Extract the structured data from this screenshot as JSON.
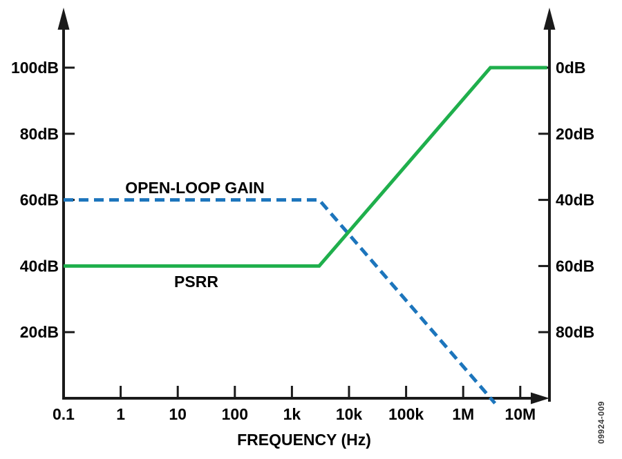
{
  "chart_data": {
    "type": "line",
    "title": "",
    "x_axis": {
      "label": "FREQUENCY (Hz)",
      "scale": "log",
      "tick_labels": [
        "0.1",
        "1",
        "10",
        "100",
        "1k",
        "10k",
        "100k",
        "1M",
        "10M"
      ],
      "tick_values": [
        0.1,
        1,
        10,
        100,
        1000,
        10000,
        100000,
        1000000,
        10000000
      ],
      "range_hz": [
        0.1,
        30000000
      ]
    },
    "y_axis_left": {
      "unit": "dB",
      "tick_labels": [
        "100dB",
        "80dB",
        "60dB",
        "40dB",
        "20dB"
      ],
      "tick_values": [
        100,
        80,
        60,
        40,
        20
      ],
      "range_db": [
        0,
        118
      ]
    },
    "y_axis_right": {
      "unit": "dB",
      "tick_labels": [
        "0dB",
        "20dB",
        "40dB",
        "60dB",
        "80dB"
      ],
      "tick_values_on_left_scale": [
        100,
        80,
        60,
        40,
        20
      ]
    },
    "grid": "off",
    "legend_position": "inline-annotations",
    "series": [
      {
        "name": "OPEN-LOOP GAIN",
        "color": "#1C75BC",
        "line_style": "dashed",
        "slope_after_break": "-20dB/decade",
        "points_hz_db": [
          [
            0.1,
            60
          ],
          [
            3000,
            60
          ],
          [
            3600000,
            -1.5
          ]
        ]
      },
      {
        "name": "PSRR",
        "color": "#1FAF4C",
        "line_style": "solid",
        "slope_after_break": "+20dB/decade",
        "points_hz_db": [
          [
            0.1,
            40
          ],
          [
            3000,
            40
          ],
          [
            3000000,
            100
          ],
          [
            29500000,
            100
          ]
        ]
      }
    ],
    "figure_number": "09924-009"
  }
}
